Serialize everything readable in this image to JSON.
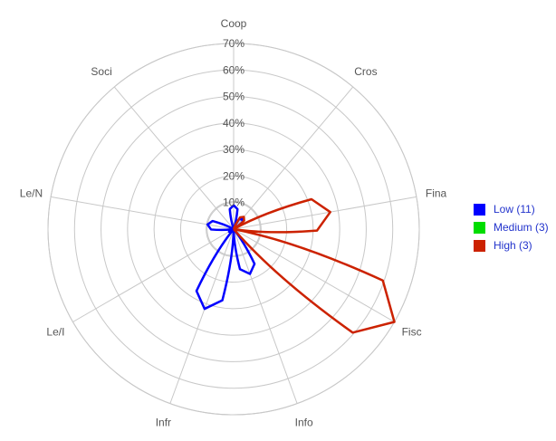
{
  "chart_data": {
    "type": "radar",
    "axes": [
      "Coop",
      "Cros",
      "Fina",
      "Fisc",
      "Info",
      "Infr",
      "Le/I",
      "Le/N",
      "Soci"
    ],
    "radial_ticks": [
      "10%",
      "20%",
      "30%",
      "40%",
      "50%",
      "60%",
      "70%"
    ],
    "rlim": [
      0,
      70
    ],
    "grid": true,
    "legend_position": "right",
    "series": [
      {
        "name": "Low (11)",
        "color": "#0000ff",
        "values": [
          9,
          5,
          0,
          0,
          18,
          32,
          2,
          10,
          0
        ]
      },
      {
        "name": "Medium (3)",
        "color": "#00dd00",
        "values": [
          0,
          0,
          0,
          0,
          0,
          0,
          0,
          0,
          0
        ]
      },
      {
        "name": "High (3)",
        "color": "#cc2200",
        "values": [
          0,
          6,
          37,
          70,
          0,
          0,
          0,
          0,
          0
        ]
      }
    ]
  }
}
